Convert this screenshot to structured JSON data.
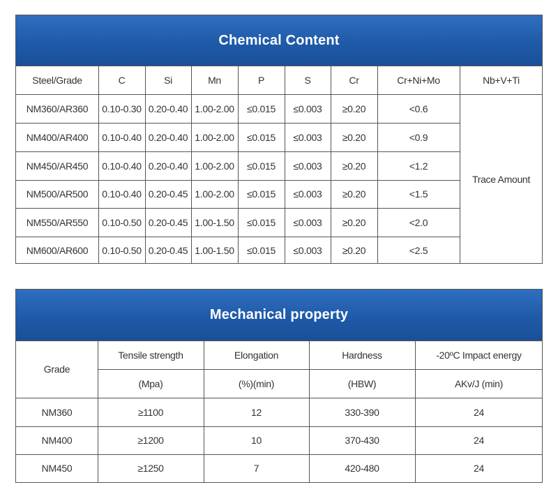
{
  "chemical": {
    "title": "Chemical Content",
    "headers": [
      "Steel/Grade",
      "C",
      "Si",
      "Mn",
      "P",
      "S",
      "Cr",
      "Cr+Ni+Mo",
      "Nb+V+Ti"
    ],
    "rows": [
      [
        "NM360/AR360",
        "0.10-0.30",
        "0.20-0.40",
        "1.00-2.00",
        "≤0.015",
        "≤0.003",
        "≥0.20",
        "<0.6"
      ],
      [
        "NM400/AR400",
        "0.10-0.40",
        "0.20-0.40",
        "1.00-2.00",
        "≤0.015",
        "≤0.003",
        "≥0.20",
        "<0.9"
      ],
      [
        "NM450/AR450",
        "0.10-0.40",
        "0.20-0.40",
        "1.00-2.00",
        "≤0.015",
        "≤0.003",
        "≥0.20",
        "<1.2"
      ],
      [
        "NM500/AR500",
        "0.10-0.40",
        "0.20-0.45",
        "1.00-2.00",
        "≤0.015",
        "≤0.003",
        "≥0.20",
        "<1.5"
      ],
      [
        "NM550/AR550",
        "0.10-0.50",
        "0.20-0.45",
        "1.00-1.50",
        "≤0.015",
        "≤0.003",
        "≥0.20",
        "<2.0"
      ],
      [
        "NM600/AR600",
        "0.10-0.50",
        "0.20-0.45",
        "1.00-1.50",
        "≤0.015",
        "≤0.003",
        "≥0.20",
        "<2.5"
      ]
    ],
    "merged_value": "Trace Amount"
  },
  "mechanical": {
    "title": "Mechanical property",
    "grade_header": "Grade",
    "headers": [
      "Tensile strength",
      "Elongation",
      "Hardness",
      "-20ºC Impact energy"
    ],
    "units": [
      "(Mpa)",
      "(%)(min)",
      "(HBW)",
      "AKv/J (min)"
    ],
    "rows": [
      [
        "NM360",
        "≥1100",
        "12",
        "330-390",
        "24"
      ],
      [
        "NM400",
        "≥1200",
        "10",
        "370-430",
        "24"
      ],
      [
        "NM450",
        "≥1250",
        "7",
        "420-480",
        "24"
      ]
    ]
  }
}
